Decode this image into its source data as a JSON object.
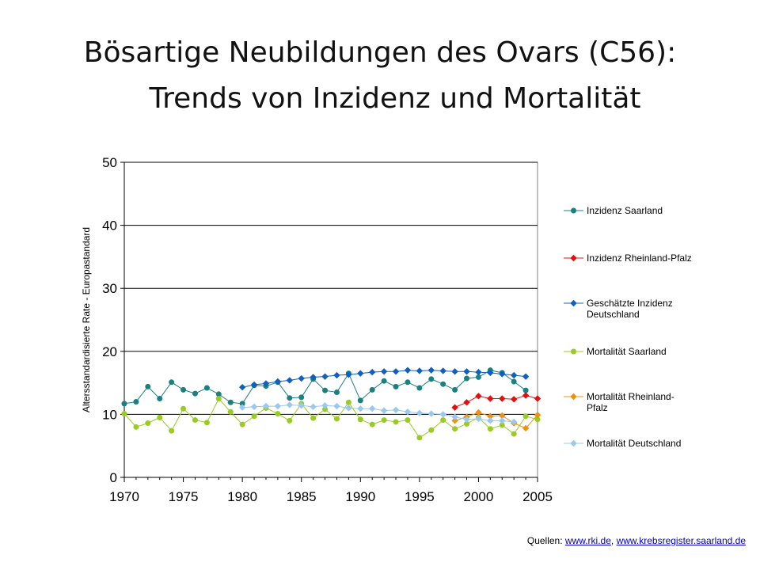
{
  "title": {
    "line1": "Bösartige Neubildungen des Ovars (C56):",
    "line2": "Trends von Inzidenz und Mortalität"
  },
  "sources": {
    "prefix": "Quellen: ",
    "link1": "www.rki.de",
    "separator": ", ",
    "link2": "www.krebsregister.saarland.de"
  },
  "chart_data": {
    "type": "line",
    "ylabel": "Altersstandardisierte Rate - Europastandard",
    "xlabel": "",
    "xlim": [
      1970,
      2005
    ],
    "ylim": [
      0,
      50
    ],
    "xticks": [
      1970,
      1975,
      1980,
      1985,
      1990,
      1995,
      2000,
      2005
    ],
    "yticks": [
      0,
      10,
      20,
      30,
      40,
      50
    ],
    "grid": "horizontal",
    "legend": "right",
    "series": [
      {
        "name": "Inzidenz Saarland",
        "color": "#1a8080",
        "marker": "circle",
        "x": [
          1970,
          1971,
          1972,
          1973,
          1974,
          1975,
          1976,
          1977,
          1978,
          1979,
          1980,
          1981,
          1982,
          1983,
          1984,
          1985,
          1986,
          1987,
          1988,
          1989,
          1990,
          1991,
          1992,
          1993,
          1994,
          1995,
          1996,
          1997,
          1998,
          1999,
          2000,
          2001,
          2002,
          2003,
          2004
        ],
        "y": [
          11.7,
          12.0,
          14.4,
          12.5,
          15.1,
          13.9,
          13.3,
          14.2,
          13.2,
          11.9,
          11.7,
          14.6,
          14.5,
          15.1,
          12.6,
          12.7,
          15.6,
          13.8,
          13.5,
          16.5,
          12.2,
          13.9,
          15.3,
          14.4,
          15.1,
          14.2,
          15.6,
          14.8,
          13.9,
          15.7,
          15.9,
          17.0,
          16.6,
          15.2,
          13.8
        ]
      },
      {
        "name": "Inzidenz Rheinland-Pfalz",
        "color": "#e01010",
        "marker": "diamond",
        "x": [
          1998,
          1999,
          2000,
          2001,
          2002,
          2003,
          2004,
          2005
        ],
        "y": [
          11.1,
          11.9,
          12.9,
          12.5,
          12.5,
          12.4,
          13.0,
          12.5
        ]
      },
      {
        "name": "Geschätzte Inzidenz Deutschland",
        "color": "#1060c0",
        "marker": "diamond",
        "x": [
          1980,
          1981,
          1982,
          1983,
          1984,
          1985,
          1986,
          1987,
          1988,
          1989,
          1990,
          1991,
          1992,
          1993,
          1994,
          1995,
          1996,
          1997,
          1998,
          1999,
          2000,
          2001,
          2002,
          2003,
          2004
        ],
        "y": [
          14.3,
          14.7,
          14.9,
          15.2,
          15.4,
          15.7,
          15.9,
          16.0,
          16.2,
          16.3,
          16.5,
          16.7,
          16.8,
          16.8,
          17.0,
          16.9,
          17.0,
          16.9,
          16.8,
          16.8,
          16.7,
          16.6,
          16.4,
          16.2,
          16.0
        ]
      },
      {
        "name": "Mortalität Saarland",
        "color": "#99cc22",
        "marker": "circle",
        "x": [
          1970,
          1971,
          1972,
          1973,
          1974,
          1975,
          1976,
          1977,
          1978,
          1979,
          1980,
          1981,
          1982,
          1983,
          1984,
          1985,
          1986,
          1987,
          1988,
          1989,
          1990,
          1991,
          1992,
          1993,
          1994,
          1995,
          1996,
          1997,
          1998,
          1999,
          2000,
          2001,
          2002,
          2003,
          2004,
          2005
        ],
        "y": [
          10.1,
          8.0,
          8.6,
          9.5,
          7.4,
          10.9,
          9.1,
          8.7,
          12.5,
          10.4,
          8.4,
          9.7,
          11.0,
          10.1,
          9.0,
          11.7,
          9.4,
          10.8,
          9.3,
          11.9,
          9.2,
          8.4,
          9.1,
          8.8,
          9.1,
          6.3,
          7.5,
          9.1,
          7.7,
          8.5,
          9.5,
          7.7,
          8.3,
          6.9,
          9.7,
          9.2
        ]
      },
      {
        "name": "Mortalität Rheinland-Pfalz",
        "color": "#f09010",
        "marker": "diamond",
        "x": [
          1998,
          1999,
          2000,
          2001,
          2002,
          2003,
          2004,
          2005
        ],
        "y": [
          9.0,
          9.6,
          10.3,
          9.7,
          9.8,
          8.6,
          7.8,
          9.9
        ]
      },
      {
        "name": "Mortalität Deutschland",
        "color": "#9ac8ee",
        "marker": "diamond",
        "x": [
          1980,
          1981,
          1982,
          1983,
          1984,
          1985,
          1986,
          1987,
          1988,
          1989,
          1990,
          1991,
          1992,
          1993,
          1994,
          1995,
          1996,
          1997,
          1998,
          1999,
          2000,
          2001,
          2002,
          2003
        ],
        "y": [
          11.1,
          11.2,
          11.3,
          11.3,
          11.5,
          11.4,
          11.2,
          11.4,
          11.3,
          11.0,
          10.9,
          10.9,
          10.6,
          10.7,
          10.4,
          10.2,
          10.1,
          10.0,
          9.6,
          9.2,
          9.3,
          9.0,
          9.0,
          8.8
        ]
      }
    ]
  }
}
